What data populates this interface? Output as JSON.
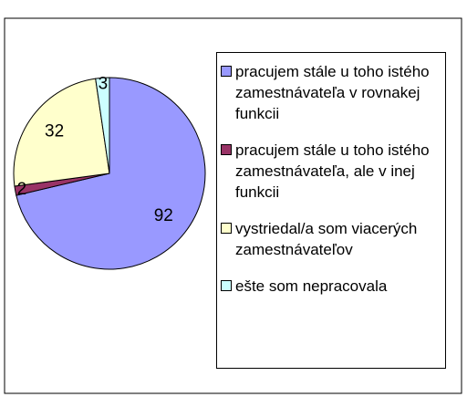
{
  "chart_data": {
    "type": "pie",
    "categories": [
      "pracujem stále u toho istého zamestnávateľa v rovnakej funkcii",
      "pracujem stále u toho istého zamestnávateľa, ale v inej funkcii",
      "vystriedal/a som viacerých zamestnávateľov",
      "ešte som nepracovala"
    ],
    "values": [
      92,
      2,
      32,
      3
    ],
    "colors": [
      "#9999ff",
      "#993366",
      "#ffffcc",
      "#ccffff"
    ],
    "legend": "right"
  }
}
